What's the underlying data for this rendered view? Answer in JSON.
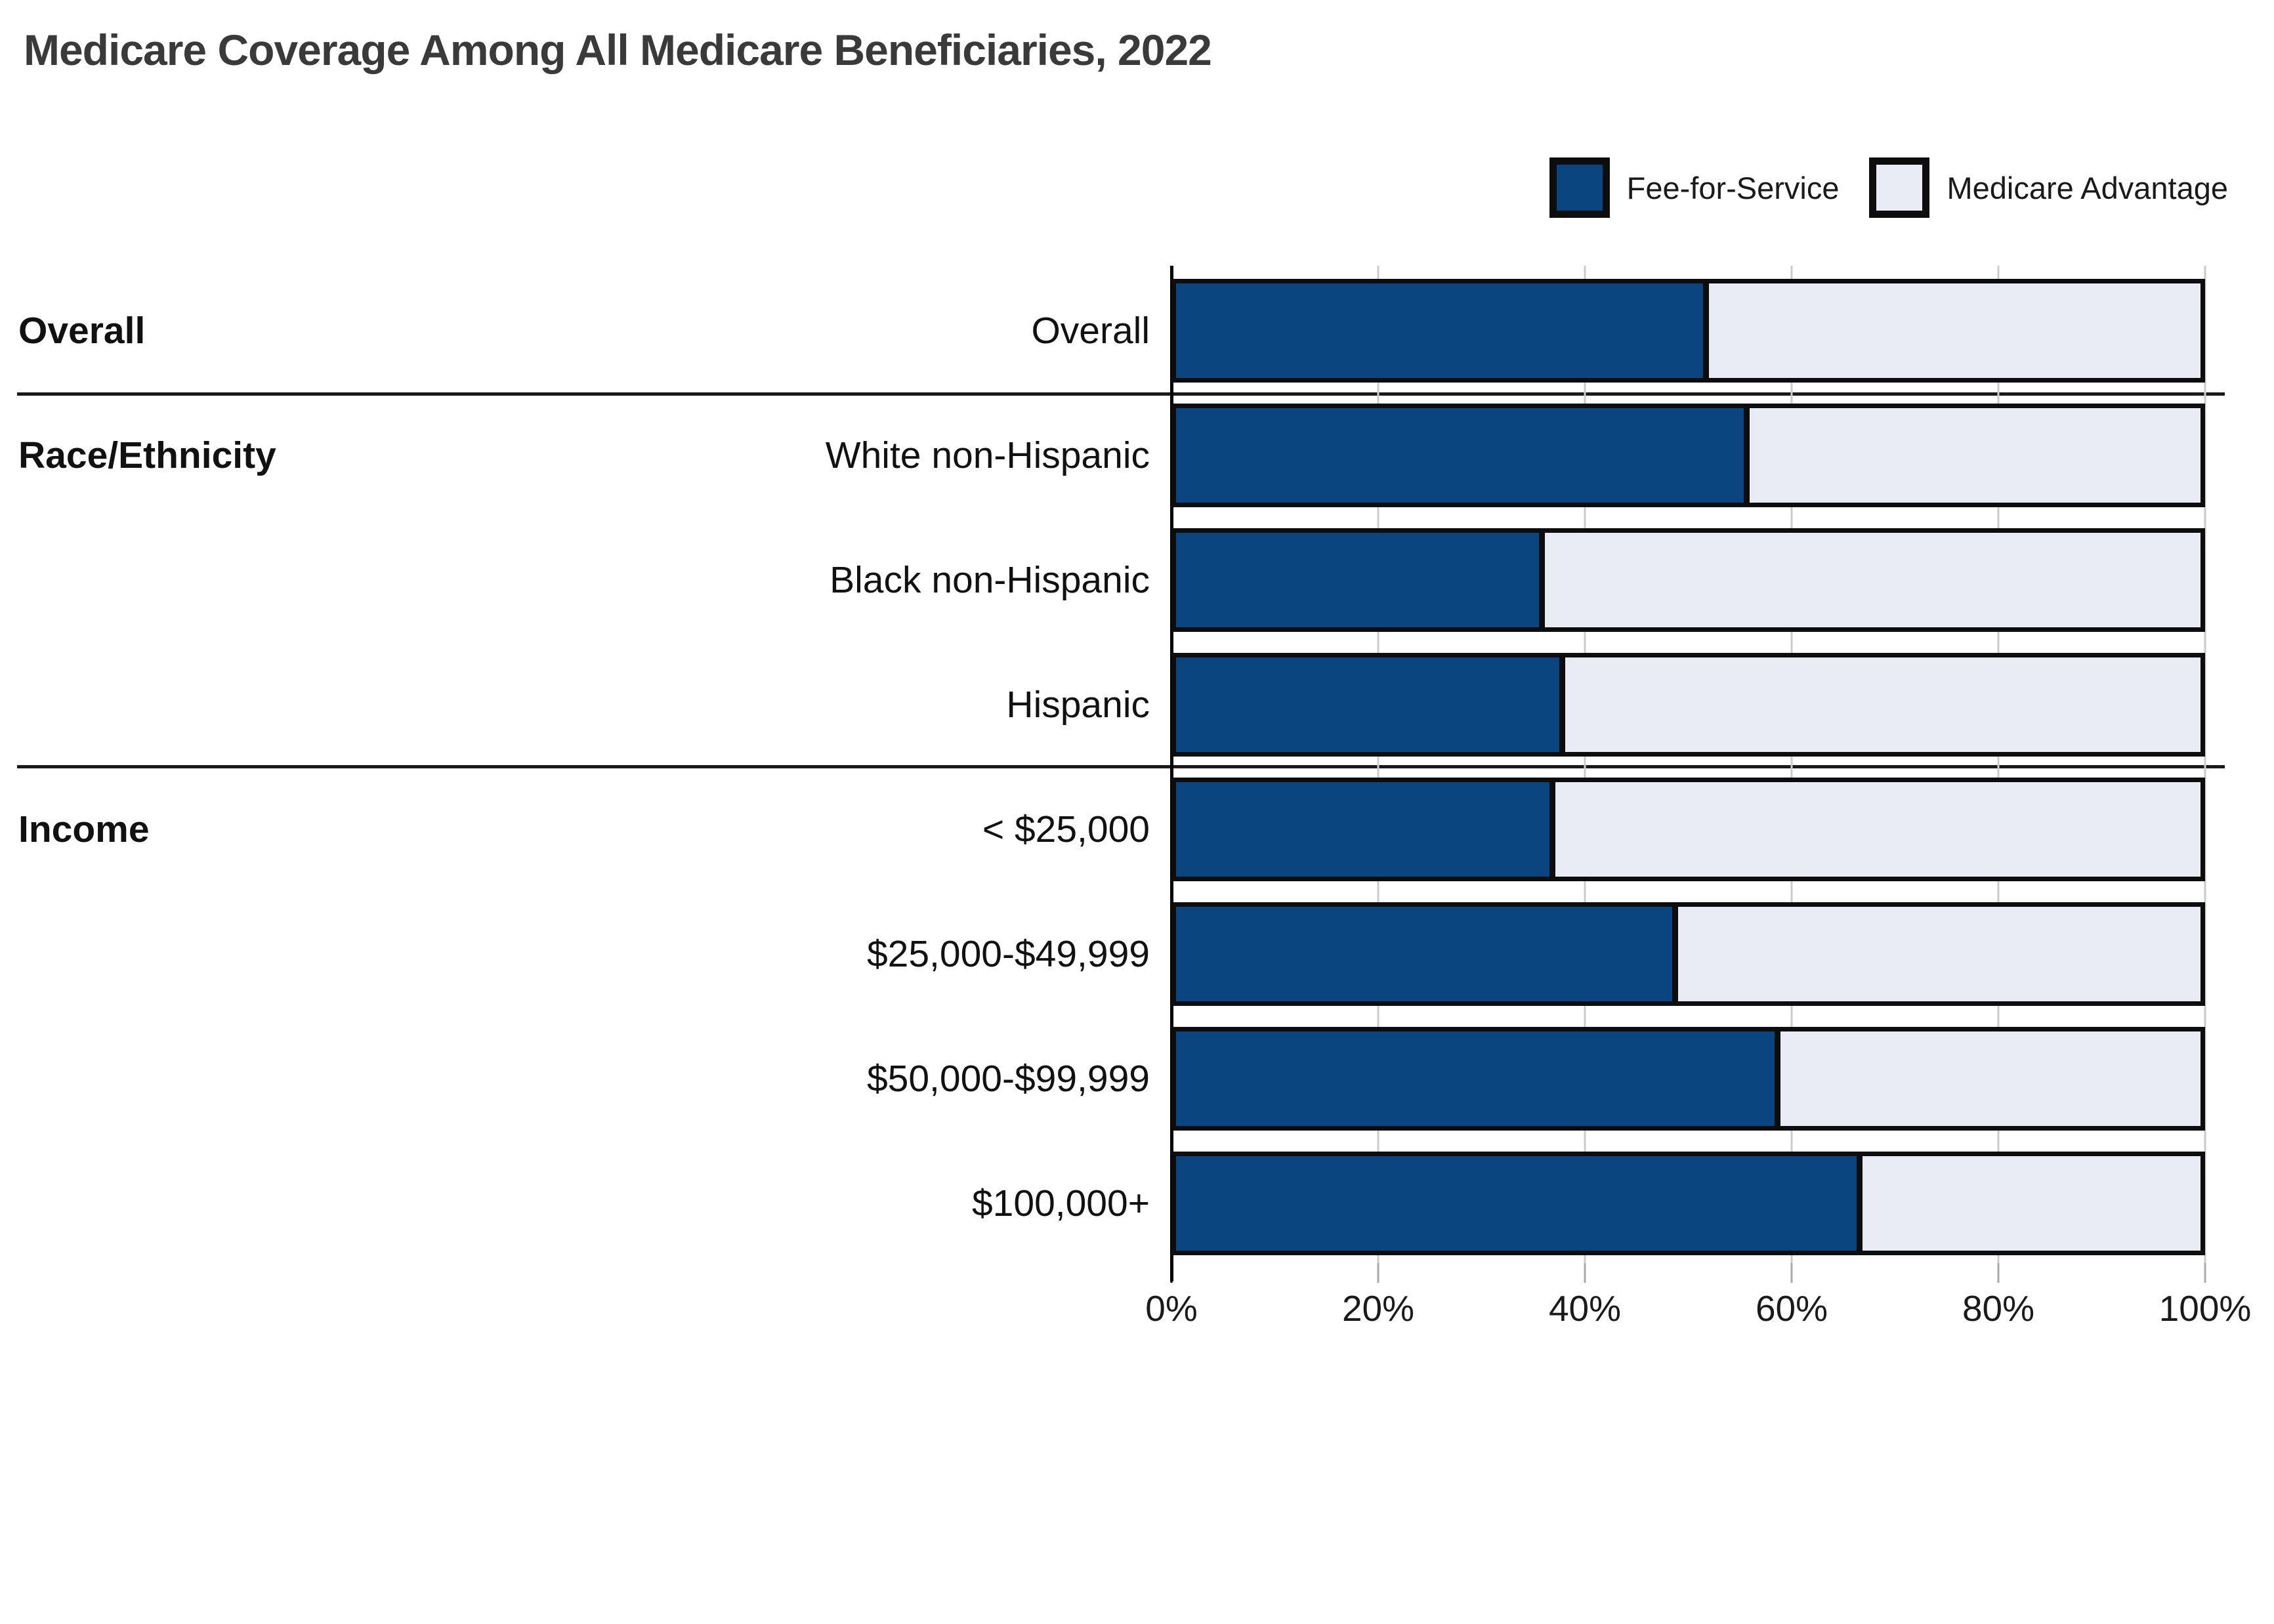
{
  "title": "Medicare Coverage Among All Medicare Beneficiaries, 2022",
  "legend": {
    "items": [
      {
        "label": "Fee-for-Service",
        "color": "#0a4580"
      },
      {
        "label": "Medicare Advantage",
        "color": "#e8ebf3"
      }
    ]
  },
  "colors": {
    "fee_for_service": "#0a4580",
    "medicare_advantage": "#e8ebf3",
    "bar_border": "#0d0d0d",
    "gridline": "#cbcbcb",
    "title_text": "#3a3a3a"
  },
  "chart_data": {
    "type": "bar",
    "orientation": "horizontal",
    "stacked": true,
    "title": "Medicare Coverage Among All Medicare Beneficiaries, 2022",
    "categories": [
      "Overall",
      "White non-Hispanic",
      "Black non-Hispanic",
      "Hispanic",
      "< $25,000",
      "$25,000-$49,999",
      "$50,000-$99,999",
      "$100,000+"
    ],
    "groups": [
      {
        "label": "Overall",
        "first_row": 0,
        "rows": [
          0
        ]
      },
      {
        "label": "Race/Ethnicity",
        "first_row": 1,
        "rows": [
          1,
          2,
          3
        ]
      },
      {
        "label": "Income",
        "first_row": 4,
        "rows": [
          4,
          5,
          6,
          7
        ]
      }
    ],
    "series": [
      {
        "name": "Fee-for-Service",
        "values": [
          52,
          56,
          36,
          38,
          37,
          49,
          59,
          67
        ]
      },
      {
        "name": "Medicare Advantage",
        "values": [
          48,
          44,
          64,
          62,
          63,
          51,
          41,
          33
        ]
      }
    ],
    "xlim": [
      0,
      100
    ],
    "x_ticks": [
      0,
      20,
      40,
      60,
      80,
      100
    ],
    "x_tick_labels": [
      "0%",
      "20%",
      "40%",
      "60%",
      "80%",
      "100%"
    ],
    "legend_position": "top-right",
    "grid": "vertical"
  }
}
